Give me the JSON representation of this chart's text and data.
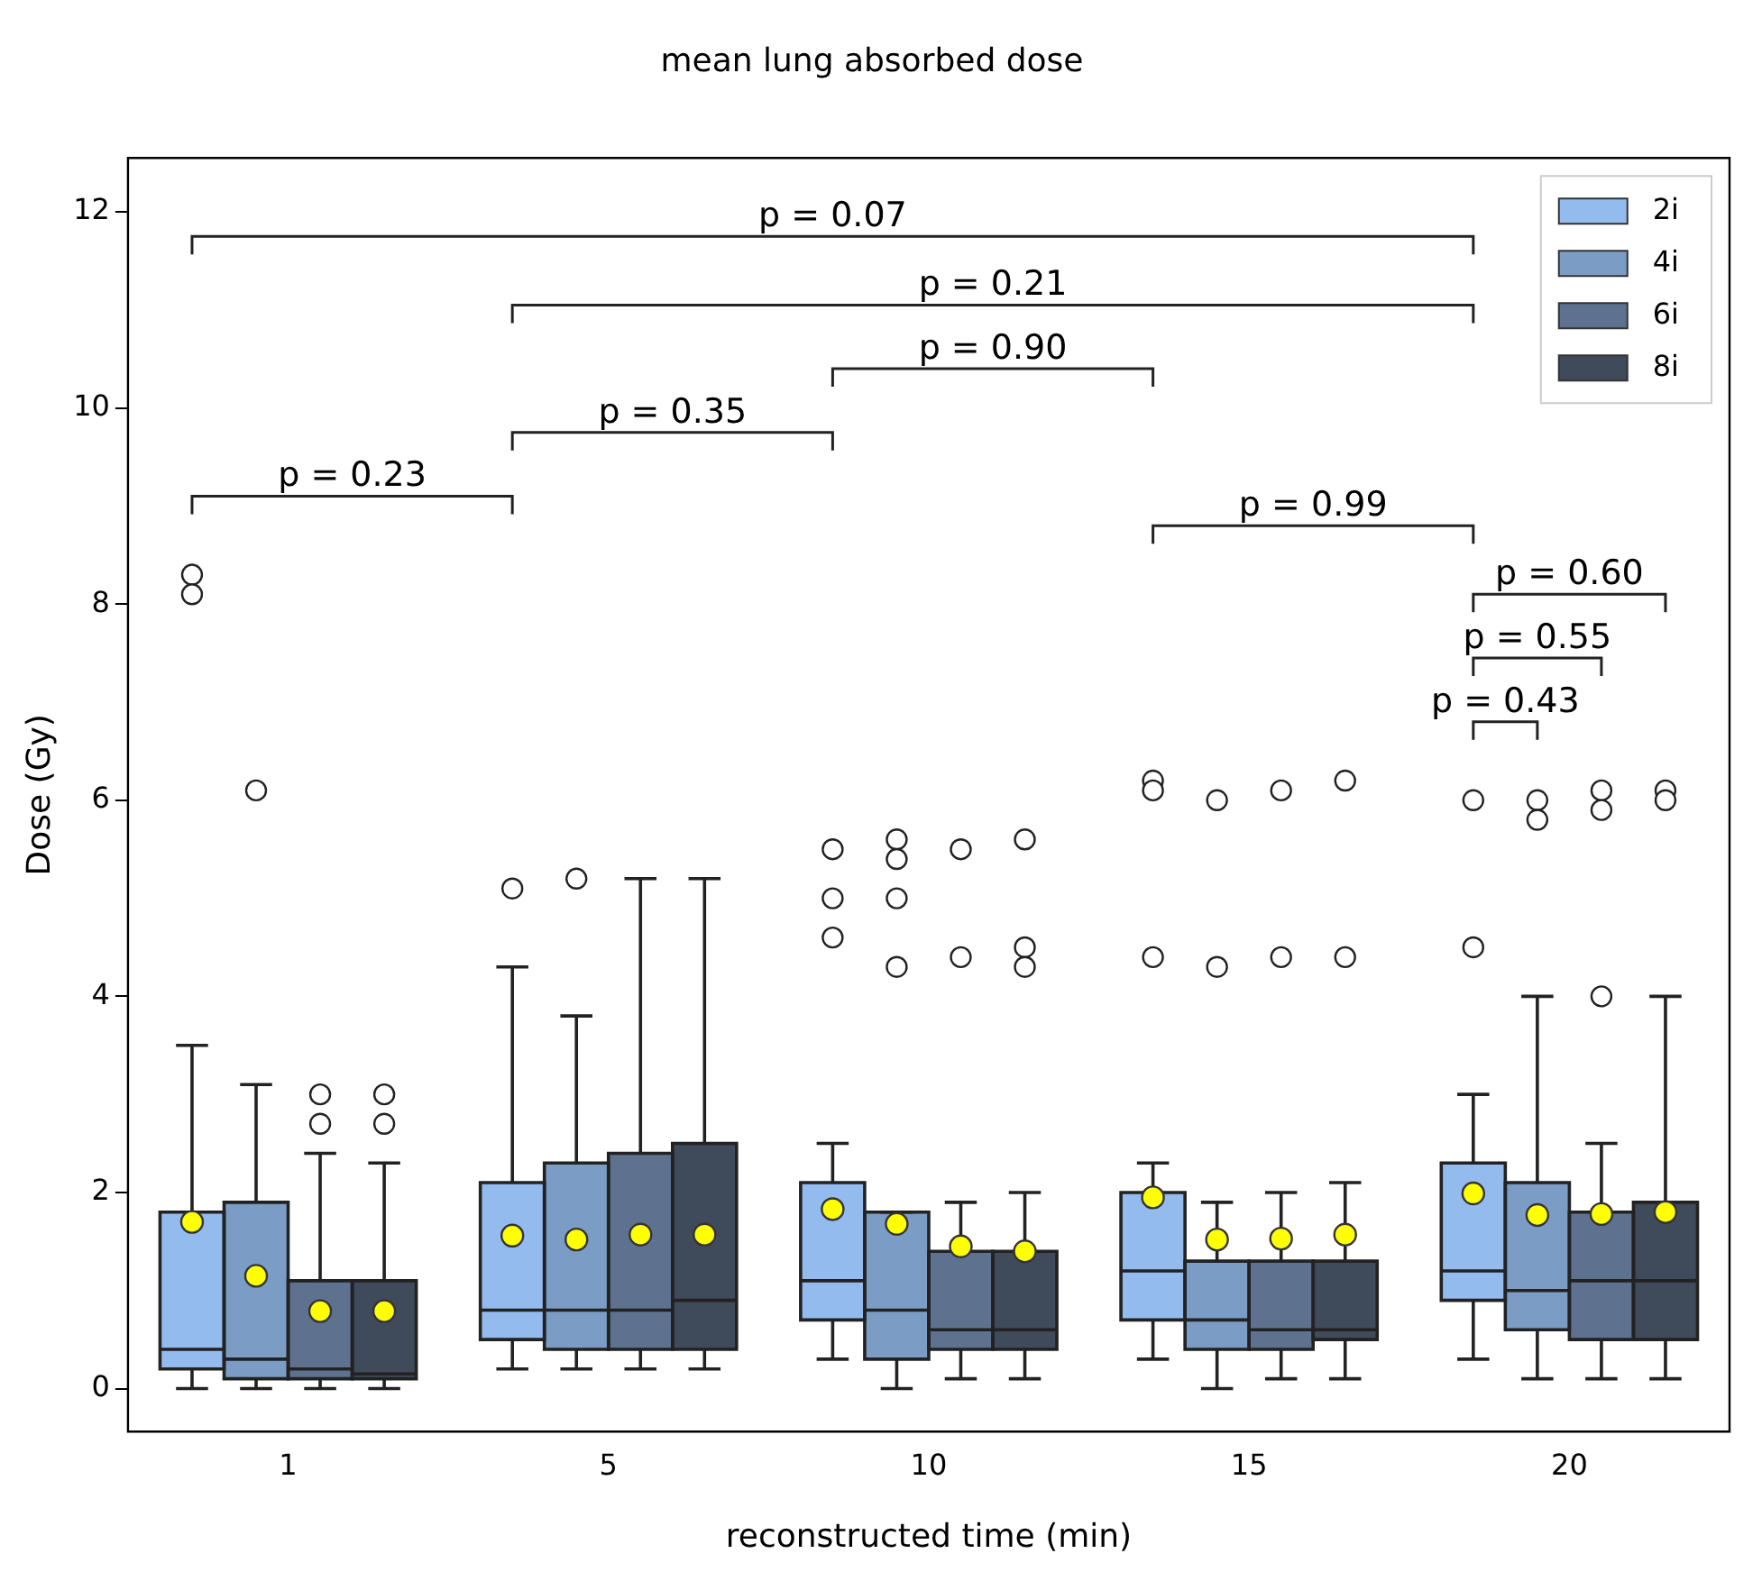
{
  "chart_data": {
    "type": "box",
    "title": "mean lung absorbed dose",
    "xlabel": "reconstructed time (min)",
    "ylabel": "Dose (Gy)",
    "categories": [
      "1",
      "5",
      "10",
      "15",
      "20"
    ],
    "ylim": [
      -0.44,
      12.55
    ],
    "yticks": [
      0,
      2,
      4,
      6,
      8,
      10,
      12
    ],
    "grid": false,
    "legend": "top right",
    "series": [
      {
        "name": "2i",
        "color": "#94bbee",
        "boxes": [
          {
            "low": 0.0,
            "q1": 0.2,
            "median": 0.4,
            "q3": 1.8,
            "high": 3.5,
            "mean": 1.7,
            "outliers": [
              8.3,
              8.1
            ]
          },
          {
            "low": 0.2,
            "q1": 0.5,
            "median": 0.8,
            "q3": 2.1,
            "high": 4.3,
            "mean": 1.56,
            "outliers": [
              5.1
            ]
          },
          {
            "low": 0.3,
            "q1": 0.7,
            "median": 1.1,
            "q3": 2.1,
            "high": 2.5,
            "mean": 1.83,
            "outliers": [
              5.5,
              5.0,
              4.6
            ]
          },
          {
            "low": 0.3,
            "q1": 0.7,
            "median": 1.2,
            "q3": 2.0,
            "high": 2.3,
            "mean": 1.95,
            "outliers": [
              6.2,
              6.1,
              4.4
            ]
          },
          {
            "low": 0.3,
            "q1": 0.9,
            "median": 1.2,
            "q3": 2.3,
            "high": 3.0,
            "mean": 1.99,
            "outliers": [
              6.0,
              4.5
            ]
          }
        ]
      },
      {
        "name": "4i",
        "color": "#7b9cc4",
        "boxes": [
          {
            "low": 0.0,
            "q1": 0.1,
            "median": 0.3,
            "q3": 1.9,
            "high": 3.1,
            "mean": 1.15,
            "outliers": [
              6.1
            ]
          },
          {
            "low": 0.2,
            "q1": 0.4,
            "median": 0.8,
            "q3": 2.3,
            "high": 3.8,
            "mean": 1.52,
            "outliers": [
              5.2
            ]
          },
          {
            "low": 0.0,
            "q1": 0.3,
            "median": 0.8,
            "q3": 1.8,
            "high": 1.8,
            "mean": 1.68,
            "outliers": [
              5.6,
              5.4,
              5.0,
              4.3
            ]
          },
          {
            "low": 0.0,
            "q1": 0.4,
            "median": 0.7,
            "q3": 1.3,
            "high": 1.9,
            "mean": 1.52,
            "outliers": [
              6.0,
              4.3
            ]
          },
          {
            "low": 0.1,
            "q1": 0.6,
            "median": 1.0,
            "q3": 2.1,
            "high": 4.0,
            "mean": 1.77,
            "outliers": [
              6.0,
              5.8
            ]
          }
        ]
      },
      {
        "name": "6i",
        "color": "#5e7290",
        "boxes": [
          {
            "low": 0.0,
            "q1": 0.1,
            "median": 0.2,
            "q3": 1.1,
            "high": 2.4,
            "mean": 0.79,
            "outliers": [
              3.0,
              2.7
            ]
          },
          {
            "low": 0.2,
            "q1": 0.4,
            "median": 0.8,
            "q3": 2.4,
            "high": 5.2,
            "mean": 1.57
          },
          {
            "low": 0.1,
            "q1": 0.4,
            "median": 0.6,
            "q3": 1.4,
            "high": 1.9,
            "mean": 1.45,
            "outliers": [
              5.5,
              4.4
            ]
          },
          {
            "low": 0.1,
            "q1": 0.4,
            "median": 0.6,
            "q3": 1.3,
            "high": 2.0,
            "mean": 1.53,
            "outliers": [
              6.1,
              4.4
            ]
          },
          {
            "low": 0.1,
            "q1": 0.5,
            "median": 1.1,
            "q3": 1.8,
            "high": 2.5,
            "mean": 1.78,
            "outliers": [
              6.1,
              5.9,
              4.0
            ]
          }
        ]
      },
      {
        "name": "8i",
        "color": "#3f4a5b",
        "boxes": [
          {
            "low": 0.0,
            "q1": 0.1,
            "median": 0.15,
            "q3": 1.1,
            "high": 2.3,
            "mean": 0.79,
            "outliers": [
              3.0,
              2.7
            ]
          },
          {
            "low": 0.2,
            "q1": 0.4,
            "median": 0.9,
            "q3": 2.5,
            "high": 5.2,
            "mean": 1.57
          },
          {
            "low": 0.1,
            "q1": 0.4,
            "median": 0.6,
            "q3": 1.4,
            "high": 2.0,
            "mean": 1.4,
            "outliers": [
              5.6,
              4.5,
              4.3
            ]
          },
          {
            "low": 0.1,
            "q1": 0.5,
            "median": 0.6,
            "q3": 1.3,
            "high": 2.1,
            "mean": 1.57,
            "outliers": [
              6.2,
              4.4
            ]
          },
          {
            "low": 0.1,
            "q1": 0.5,
            "median": 1.1,
            "q3": 1.9,
            "high": 4.0,
            "mean": 1.8,
            "outliers": [
              6.1,
              6.0
            ]
          }
        ]
      }
    ],
    "annotations": [
      "p = 0.23",
      "p = 0.35",
      "p = 0.90",
      "p = 0.21",
      "p = 0.07",
      "p = 0.99",
      "p = 0.43",
      "p = 0.55",
      "p = 0.60"
    ]
  }
}
